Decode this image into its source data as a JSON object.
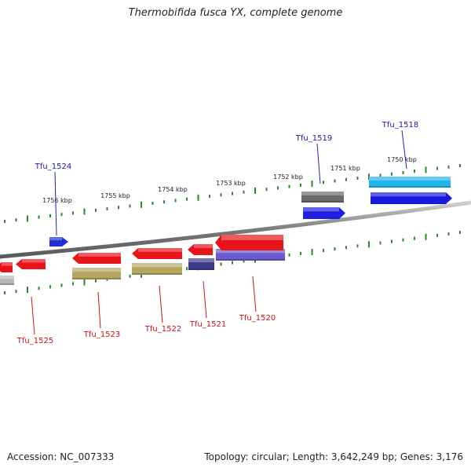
{
  "title": "Thermobifida fusca YX, complete genome",
  "footer": {
    "accession": "Accession: NC_007333",
    "stats": "Topology: circular; Length: 3,642,249 bp; Genes: 3,176"
  },
  "colors": {
    "background": "#ffffff",
    "backbone": "#808080",
    "tick": "#2a8a2a",
    "label_top": "#1a1aaa",
    "label_bottom": "#cc1111",
    "leader_top": "#2222aa",
    "leader_bottom": "#cc1111"
  },
  "scale_labels": [
    "1756 kbp",
    "1755 kbp",
    "1754 kbp",
    "1753 kbp",
    "1752 kbp",
    "1751 kbp",
    "1750 kbp"
  ],
  "genes_top": [
    {
      "name": "Tfu_1524",
      "fill": "#1f2fd6",
      "strand": "+"
    },
    {
      "name": "Tfu_1519",
      "fill": "#1f1fe0",
      "strand": "+",
      "product_fill": "#6a6a6a"
    },
    {
      "name": "Tfu_1518",
      "fill": "#1a1add",
      "strand": "+",
      "product_fill": "#22b5ea"
    }
  ],
  "genes_bottom": [
    {
      "name": "Tfu_1525",
      "fill": "#e8141a",
      "strand": "-",
      "product_fill": "#b8b8b8"
    },
    {
      "name": "Tfu_1523",
      "fill": "#e8141a",
      "strand": "-",
      "product_fill": "#b4a860"
    },
    {
      "name": "Tfu_1522",
      "fill": "#e8141a",
      "strand": "-",
      "product_fill": "#b4a860"
    },
    {
      "name": "Tfu_1521",
      "fill": "#e8141a",
      "strand": "-",
      "product_fill": "#3e3a8a"
    },
    {
      "name": "Tfu_1520",
      "fill": "#e8141a",
      "strand": "-",
      "product_fill": "#6a5acd"
    }
  ]
}
